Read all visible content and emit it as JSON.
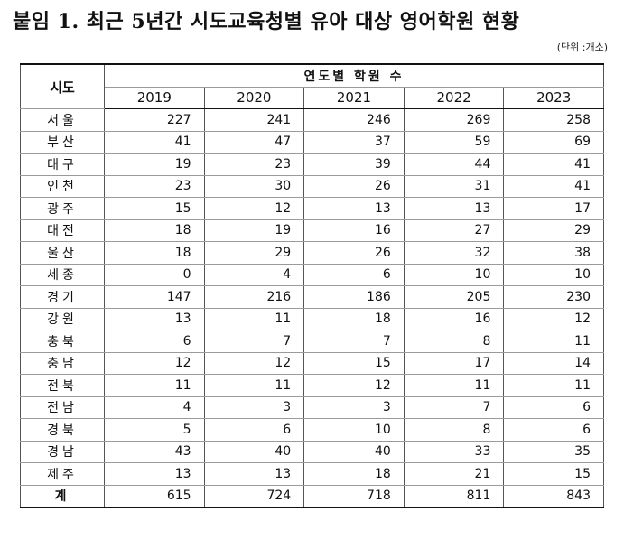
{
  "title": "붙임 1. 최근 5년간 시도교육청별 유아 대상 영어학원 현황",
  "unit": "(단위 :개소)",
  "table": {
    "region_header": "시도",
    "group_header": "연도별 학원 수",
    "years": [
      "2019",
      "2020",
      "2021",
      "2022",
      "2023"
    ],
    "rows": [
      {
        "region": "서울",
        "values": [
          "227",
          "241",
          "246",
          "269",
          "258"
        ]
      },
      {
        "region": "부산",
        "values": [
          "41",
          "47",
          "37",
          "59",
          "69"
        ]
      },
      {
        "region": "대구",
        "values": [
          "19",
          "23",
          "39",
          "44",
          "41"
        ]
      },
      {
        "region": "인천",
        "values": [
          "23",
          "30",
          "26",
          "31",
          "41"
        ]
      },
      {
        "region": "광주",
        "values": [
          "15",
          "12",
          "13",
          "13",
          "17"
        ]
      },
      {
        "region": "대전",
        "values": [
          "18",
          "19",
          "16",
          "27",
          "29"
        ]
      },
      {
        "region": "울산",
        "values": [
          "18",
          "29",
          "26",
          "32",
          "38"
        ]
      },
      {
        "region": "세종",
        "values": [
          "0",
          "4",
          "6",
          "10",
          "10"
        ]
      },
      {
        "region": "경기",
        "values": [
          "147",
          "216",
          "186",
          "205",
          "230"
        ]
      },
      {
        "region": "강원",
        "values": [
          "13",
          "11",
          "18",
          "16",
          "12"
        ]
      },
      {
        "region": "충북",
        "values": [
          "6",
          "7",
          "7",
          "8",
          "11"
        ]
      },
      {
        "region": "충남",
        "values": [
          "12",
          "12",
          "15",
          "17",
          "14"
        ]
      },
      {
        "region": "전북",
        "values": [
          "11",
          "11",
          "12",
          "11",
          "11"
        ]
      },
      {
        "region": "전남",
        "values": [
          "4",
          "3",
          "3",
          "7",
          "6"
        ]
      },
      {
        "region": "경북",
        "values": [
          "5",
          "6",
          "10",
          "8",
          "6"
        ]
      },
      {
        "region": "경남",
        "values": [
          "43",
          "40",
          "40",
          "33",
          "35"
        ]
      },
      {
        "region": "제주",
        "values": [
          "13",
          "13",
          "18",
          "21",
          "15"
        ]
      }
    ],
    "total": {
      "region": "계",
      "values": [
        "615",
        "724",
        "718",
        "811",
        "843"
      ]
    }
  }
}
